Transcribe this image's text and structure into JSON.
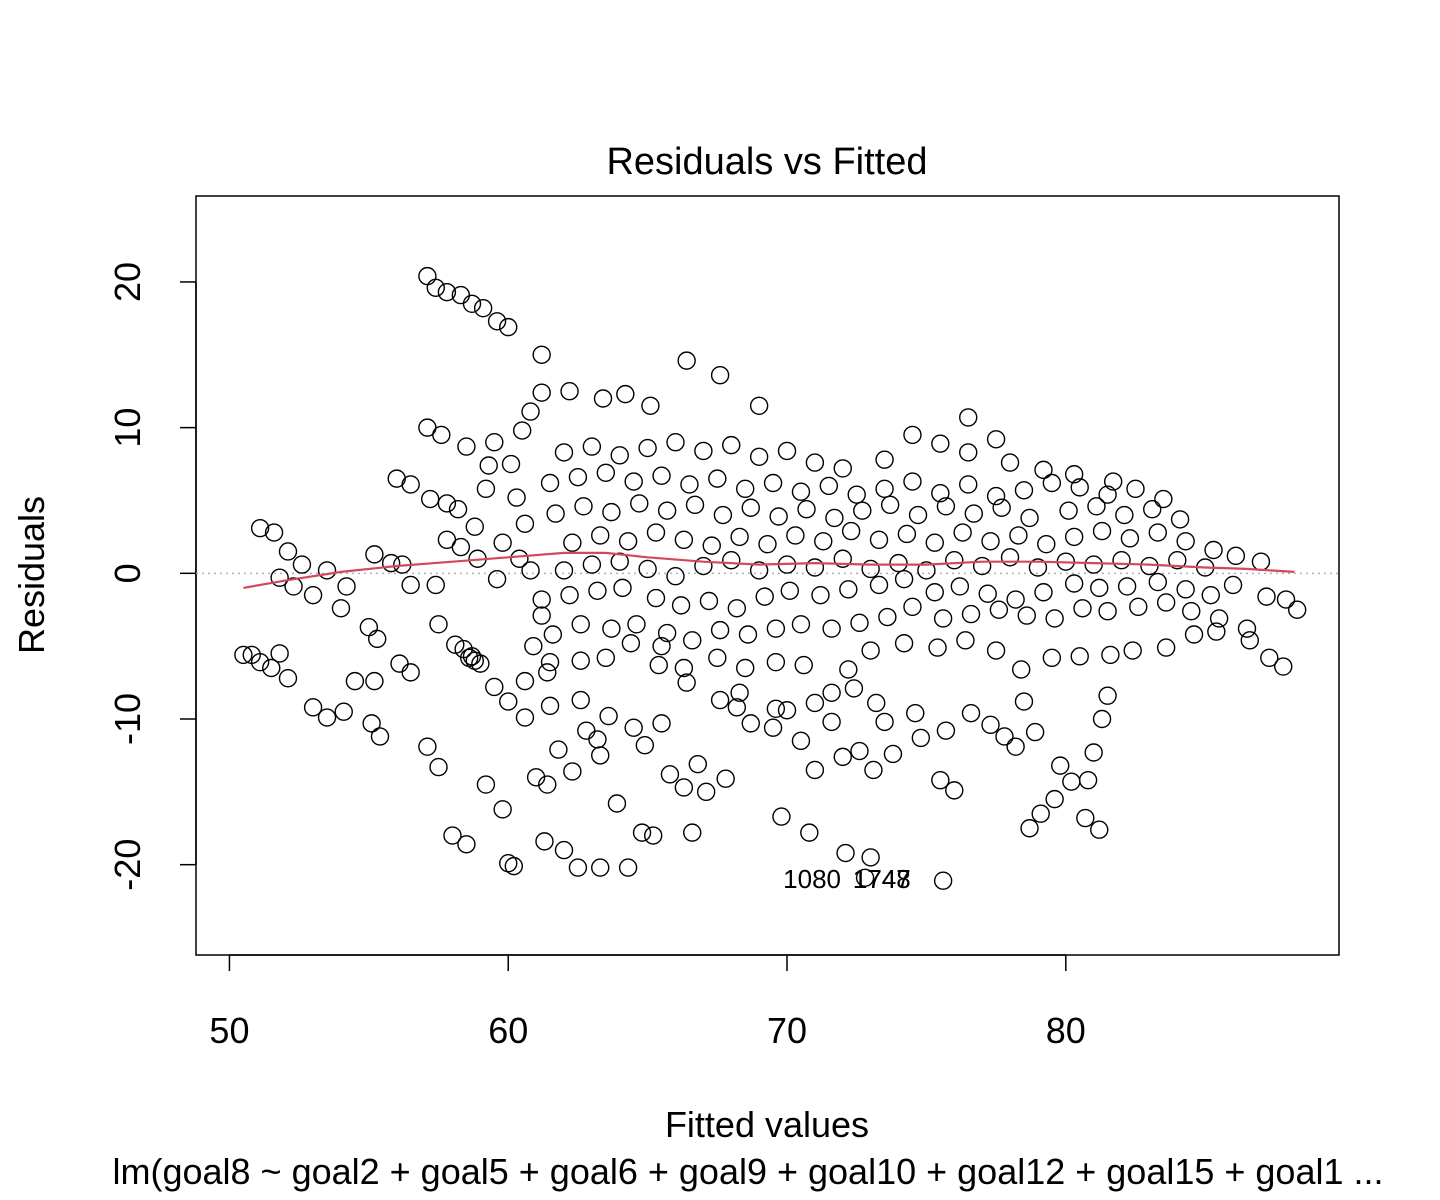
{
  "chart_data": {
    "type": "scatter",
    "title": "Residuals vs Fitted",
    "xlabel": "Fitted values",
    "ylabel": "Residuals",
    "caption": "lm(goal8 ~ goal2 + goal5 + goal6 + goal9 + goal10 + goal12 + goal15 + goal1 ...",
    "xlim": [
      48.8,
      89.8
    ],
    "ylim": [
      -26.2,
      25.9
    ],
    "xticks": [
      50,
      60,
      70,
      80
    ],
    "xtick_labels": [
      "50",
      "60",
      "70",
      "80"
    ],
    "yticks": [
      -20,
      -10,
      0,
      10,
      20
    ],
    "ytick_labels": [
      "-20",
      "-10",
      "0",
      "10",
      "20"
    ],
    "grid": false,
    "reference_line": {
      "y": 0,
      "style": "dotted",
      "color": "#b0b0b0"
    },
    "colors": {
      "points": "#000000",
      "smooth": "#d1495b",
      "reference": "#b0b0b0"
    },
    "smooth_line": {
      "x": [
        50.5,
        52.0,
        54.0,
        56.0,
        58.0,
        60.0,
        62.0,
        63.5,
        65.0,
        67.0,
        69.0,
        71.0,
        73.0,
        75.0,
        77.0,
        79.0,
        81.0,
        83.0,
        85.0,
        86.5,
        88.2
      ],
      "y": [
        -1.0,
        -0.5,
        0.1,
        0.5,
        0.8,
        1.1,
        1.4,
        1.4,
        1.1,
        0.8,
        0.6,
        0.7,
        0.6,
        0.6,
        0.8,
        0.8,
        0.7,
        0.6,
        0.4,
        0.3,
        0.1
      ]
    },
    "points": [
      [
        50.5,
        -5.6
      ],
      [
        50.8,
        -5.6
      ],
      [
        51.1,
        -6.1
      ],
      [
        51.5,
        -6.5
      ],
      [
        51.8,
        -5.5
      ],
      [
        52.1,
        -7.2
      ],
      [
        53.0,
        -9.2
      ],
      [
        53.5,
        -9.9
      ],
      [
        54.1,
        -9.5
      ],
      [
        54.5,
        -7.4
      ],
      [
        55.1,
        -10.3
      ],
      [
        55.4,
        -11.2
      ],
      [
        55.2,
        -7.4
      ],
      [
        56.1,
        -6.2
      ],
      [
        56.5,
        -6.8
      ],
      [
        57.1,
        -11.9
      ],
      [
        57.5,
        -13.3
      ],
      [
        58.0,
        -18.0
      ],
      [
        58.5,
        -18.6
      ],
      [
        59.2,
        -14.5
      ],
      [
        59.8,
        -16.2
      ],
      [
        60.0,
        -19.9
      ],
      [
        60.2,
        -20.1
      ],
      [
        61.0,
        -14.0
      ],
      [
        61.4,
        -14.5
      ],
      [
        61.3,
        -18.4
      ],
      [
        62.0,
        -19.0
      ],
      [
        62.5,
        -20.2
      ],
      [
        63.3,
        -20.2
      ],
      [
        64.3,
        -20.2
      ],
      [
        64.8,
        -17.8
      ],
      [
        65.2,
        -18.0
      ],
      [
        66.6,
        -17.8
      ],
      [
        69.8,
        -16.7
      ],
      [
        70.8,
        -17.8
      ],
      [
        72.1,
        -19.2
      ],
      [
        72.8,
        -20.9
      ],
      [
        73.0,
        -19.5
      ],
      [
        75.6,
        -21.1
      ],
      [
        78.7,
        -17.5
      ],
      [
        79.1,
        -16.5
      ],
      [
        80.2,
        -14.3
      ],
      [
        81.2,
        -17.6
      ],
      [
        57.1,
        20.4
      ],
      [
        57.4,
        19.6
      ],
      [
        57.8,
        19.3
      ],
      [
        58.3,
        19.1
      ],
      [
        58.7,
        18.5
      ],
      [
        59.1,
        18.2
      ],
      [
        59.6,
        17.3
      ],
      [
        60.0,
        16.9
      ],
      [
        61.2,
        15.0
      ],
      [
        66.4,
        14.6
      ],
      [
        67.6,
        13.6
      ],
      [
        61.2,
        12.4
      ],
      [
        62.2,
        12.5
      ],
      [
        63.4,
        12.0
      ],
      [
        64.2,
        12.3
      ],
      [
        65.1,
        11.5
      ],
      [
        69.0,
        11.5
      ],
      [
        57.1,
        10.0
      ],
      [
        57.6,
        9.5
      ],
      [
        76.5,
        10.7
      ],
      [
        51.1,
        3.1
      ],
      [
        51.6,
        2.8
      ],
      [
        52.1,
        1.5
      ],
      [
        52.6,
        0.6
      ],
      [
        53.5,
        0.2
      ],
      [
        54.2,
        -0.9
      ],
      [
        51.8,
        -0.3
      ],
      [
        52.3,
        -0.9
      ],
      [
        53.0,
        -1.5
      ],
      [
        54.0,
        -2.4
      ],
      [
        55.2,
        1.3
      ],
      [
        55.8,
        0.7
      ],
      [
        56.2,
        0.6
      ],
      [
        56.5,
        -0.8
      ],
      [
        57.4,
        -0.8
      ],
      [
        57.8,
        2.3
      ],
      [
        58.3,
        1.8
      ],
      [
        58.9,
        1.0
      ],
      [
        59.6,
        -0.4
      ],
      [
        56.0,
        6.5
      ],
      [
        56.5,
        6.1
      ],
      [
        57.2,
        5.1
      ],
      [
        57.8,
        4.8
      ],
      [
        58.5,
        8.7
      ],
      [
        59.3,
        7.4
      ],
      [
        57.5,
        -3.5
      ],
      [
        58.1,
        -4.9
      ],
      [
        58.7,
        -5.7
      ],
      [
        59.5,
        -7.8
      ],
      [
        60.0,
        -8.8
      ],
      [
        60.6,
        -9.9
      ],
      [
        61.5,
        -9.1
      ],
      [
        62.6,
        -8.7
      ],
      [
        63.6,
        -9.8
      ],
      [
        64.5,
        -10.6
      ],
      [
        65.5,
        -10.3
      ],
      [
        61.8,
        -12.1
      ],
      [
        62.3,
        -13.6
      ],
      [
        63.3,
        -12.5
      ],
      [
        63.9,
        -15.8
      ],
      [
        64.9,
        -11.8
      ],
      [
        65.8,
        -13.8
      ],
      [
        66.3,
        -14.7
      ],
      [
        67.1,
        -15.0
      ],
      [
        67.8,
        -14.1
      ],
      [
        68.7,
        -10.3
      ],
      [
        68.3,
        -8.2
      ],
      [
        69.5,
        -10.6
      ],
      [
        70.0,
        -9.4
      ],
      [
        70.5,
        -11.5
      ],
      [
        71.0,
        -13.5
      ],
      [
        71.6,
        -10.2
      ],
      [
        72.0,
        -12.6
      ],
      [
        72.6,
        -12.2
      ],
      [
        73.1,
        -13.5
      ],
      [
        73.5,
        -10.2
      ],
      [
        74.6,
        -9.6
      ],
      [
        75.5,
        -14.2
      ],
      [
        76.0,
        -14.9
      ],
      [
        75.7,
        -10.8
      ],
      [
        76.6,
        -9.6
      ],
      [
        77.3,
        -10.4
      ],
      [
        77.8,
        -11.2
      ],
      [
        78.2,
        -11.9
      ],
      [
        78.5,
        -8.8
      ],
      [
        79.8,
        -13.2
      ],
      [
        80.8,
        -14.2
      ],
      [
        81.3,
        -10.0
      ],
      [
        81.5,
        -8.4
      ],
      [
        81.0,
        -12.3
      ],
      [
        79.6,
        -15.5
      ],
      [
        65.4,
        -6.3
      ],
      [
        66.4,
        -7.5
      ],
      [
        67.6,
        -8.7
      ],
      [
        68.2,
        -9.2
      ],
      [
        69.6,
        -9.3
      ],
      [
        71.0,
        -8.9
      ],
      [
        71.6,
        -8.2
      ],
      [
        72.4,
        -7.9
      ],
      [
        73.2,
        -8.9
      ],
      [
        60.6,
        -7.4
      ],
      [
        61.4,
        -6.8
      ],
      [
        62.6,
        -6.0
      ],
      [
        63.5,
        -5.8
      ],
      [
        64.4,
        -4.8
      ],
      [
        65.5,
        -5.0
      ],
      [
        66.3,
        -6.5
      ],
      [
        67.5,
        -5.8
      ],
      [
        68.5,
        -6.5
      ],
      [
        69.6,
        -6.1
      ],
      [
        70.6,
        -6.3
      ],
      [
        72.2,
        -6.6
      ],
      [
        73.0,
        -5.3
      ],
      [
        74.2,
        -4.8
      ],
      [
        75.4,
        -5.1
      ],
      [
        76.4,
        -4.6
      ],
      [
        77.5,
        -5.3
      ],
      [
        78.4,
        -6.6
      ],
      [
        79.5,
        -5.8
      ],
      [
        80.5,
        -5.7
      ],
      [
        81.6,
        -5.6
      ],
      [
        82.4,
        -5.3
      ],
      [
        83.6,
        -5.1
      ],
      [
        84.6,
        -4.2
      ],
      [
        85.4,
        -4.0
      ],
      [
        86.6,
        -4.6
      ],
      [
        87.3,
        -5.8
      ],
      [
        87.8,
        -6.4
      ],
      [
        61.6,
        -4.2
      ],
      [
        62.6,
        -3.5
      ],
      [
        63.7,
        -3.8
      ],
      [
        64.6,
        -3.5
      ],
      [
        65.7,
        -4.1
      ],
      [
        66.6,
        -4.6
      ],
      [
        67.6,
        -3.9
      ],
      [
        68.6,
        -4.2
      ],
      [
        69.6,
        -3.8
      ],
      [
        70.5,
        -3.5
      ],
      [
        71.6,
        -3.8
      ],
      [
        72.6,
        -3.4
      ],
      [
        73.6,
        -3.0
      ],
      [
        74.5,
        -2.3
      ],
      [
        75.6,
        -3.1
      ],
      [
        76.6,
        -2.8
      ],
      [
        77.6,
        -2.5
      ],
      [
        78.6,
        -2.9
      ],
      [
        79.6,
        -3.1
      ],
      [
        80.6,
        -2.4
      ],
      [
        81.5,
        -2.6
      ],
      [
        82.6,
        -2.3
      ],
      [
        83.6,
        -2.0
      ],
      [
        84.5,
        -2.6
      ],
      [
        85.5,
        -3.1
      ],
      [
        86.5,
        -3.8
      ],
      [
        61.2,
        -1.8
      ],
      [
        62.2,
        -1.5
      ],
      [
        63.2,
        -1.2
      ],
      [
        64.1,
        -1.0
      ],
      [
        65.3,
        -1.7
      ],
      [
        66.2,
        -2.2
      ],
      [
        67.2,
        -1.9
      ],
      [
        68.2,
        -2.4
      ],
      [
        69.2,
        -1.6
      ],
      [
        70.1,
        -1.2
      ],
      [
        71.2,
        -1.5
      ],
      [
        72.2,
        -1.1
      ],
      [
        73.3,
        -0.8
      ],
      [
        74.2,
        -0.4
      ],
      [
        75.3,
        -1.3
      ],
      [
        76.2,
        -0.9
      ],
      [
        77.2,
        -1.4
      ],
      [
        78.2,
        -1.8
      ],
      [
        79.2,
        -1.3
      ],
      [
        80.3,
        -0.7
      ],
      [
        81.2,
        -1.0
      ],
      [
        82.2,
        -0.9
      ],
      [
        83.3,
        -0.6
      ],
      [
        84.3,
        -1.1
      ],
      [
        85.2,
        -1.5
      ],
      [
        86.0,
        -0.8
      ],
      [
        87.2,
        -1.6
      ],
      [
        87.9,
        -1.8
      ],
      [
        88.3,
        -2.5
      ],
      [
        62.0,
        0.2
      ],
      [
        63.0,
        0.6
      ],
      [
        64.0,
        0.8
      ],
      [
        65.0,
        0.3
      ],
      [
        66.0,
        -0.2
      ],
      [
        67.0,
        0.5
      ],
      [
        68.0,
        0.9
      ],
      [
        69.0,
        0.2
      ],
      [
        70.0,
        0.6
      ],
      [
        71.0,
        0.4
      ],
      [
        72.0,
        1.0
      ],
      [
        73.0,
        0.3
      ],
      [
        74.0,
        0.7
      ],
      [
        75.0,
        0.2
      ],
      [
        76.0,
        0.9
      ],
      [
        77.0,
        0.5
      ],
      [
        78.0,
        1.1
      ],
      [
        79.0,
        0.4
      ],
      [
        80.0,
        0.8
      ],
      [
        81.0,
        0.6
      ],
      [
        82.0,
        0.9
      ],
      [
        83.0,
        0.5
      ],
      [
        84.0,
        0.9
      ],
      [
        85.0,
        0.4
      ],
      [
        86.1,
        1.2
      ],
      [
        87.0,
        0.8
      ],
      [
        62.3,
        2.1
      ],
      [
        63.3,
        2.6
      ],
      [
        64.3,
        2.2
      ],
      [
        65.3,
        2.8
      ],
      [
        66.3,
        2.3
      ],
      [
        67.3,
        1.9
      ],
      [
        68.3,
        2.5
      ],
      [
        69.3,
        2.0
      ],
      [
        70.3,
        2.6
      ],
      [
        71.3,
        2.2
      ],
      [
        72.3,
        2.9
      ],
      [
        73.3,
        2.3
      ],
      [
        74.3,
        2.7
      ],
      [
        75.3,
        2.1
      ],
      [
        76.3,
        2.8
      ],
      [
        77.3,
        2.2
      ],
      [
        78.3,
        2.6
      ],
      [
        79.3,
        2.0
      ],
      [
        80.3,
        2.5
      ],
      [
        81.3,
        2.9
      ],
      [
        82.3,
        2.4
      ],
      [
        83.3,
        2.8
      ],
      [
        84.3,
        2.2
      ],
      [
        85.3,
        1.6
      ],
      [
        61.7,
        4.1
      ],
      [
        62.7,
        4.6
      ],
      [
        63.7,
        4.2
      ],
      [
        64.7,
        4.8
      ],
      [
        65.7,
        4.3
      ],
      [
        66.7,
        4.7
      ],
      [
        67.7,
        4.0
      ],
      [
        68.7,
        4.5
      ],
      [
        69.7,
        3.9
      ],
      [
        70.7,
        4.4
      ],
      [
        71.7,
        3.8
      ],
      [
        72.7,
        4.3
      ],
      [
        73.7,
        4.7
      ],
      [
        74.7,
        4.0
      ],
      [
        75.7,
        4.6
      ],
      [
        76.7,
        4.1
      ],
      [
        77.7,
        4.5
      ],
      [
        78.7,
        3.8
      ],
      [
        80.1,
        4.3
      ],
      [
        81.1,
        4.6
      ],
      [
        82.1,
        4.0
      ],
      [
        83.1,
        4.4
      ],
      [
        84.1,
        3.7
      ],
      [
        61.5,
        6.2
      ],
      [
        62.5,
        6.6
      ],
      [
        63.5,
        6.9
      ],
      [
        64.5,
        6.3
      ],
      [
        65.5,
        6.7
      ],
      [
        66.5,
        6.1
      ],
      [
        67.5,
        6.5
      ],
      [
        68.5,
        5.8
      ],
      [
        69.5,
        6.2
      ],
      [
        70.5,
        5.6
      ],
      [
        71.5,
        6.0
      ],
      [
        72.5,
        5.4
      ],
      [
        73.5,
        5.8
      ],
      [
        74.5,
        6.3
      ],
      [
        75.5,
        5.5
      ],
      [
        76.5,
        6.1
      ],
      [
        77.5,
        5.3
      ],
      [
        78.5,
        5.7
      ],
      [
        79.5,
        6.2
      ],
      [
        80.5,
        5.9
      ],
      [
        81.5,
        5.4
      ],
      [
        82.5,
        5.8
      ],
      [
        83.5,
        5.1
      ],
      [
        62.0,
        8.3
      ],
      [
        63.0,
        8.7
      ],
      [
        64.0,
        8.1
      ],
      [
        65.0,
        8.6
      ],
      [
        66.0,
        9.0
      ],
      [
        67.0,
        8.4
      ],
      [
        68.0,
        8.8
      ],
      [
        69.0,
        8.0
      ],
      [
        70.0,
        8.4
      ],
      [
        71.0,
        7.6
      ],
      [
        72.0,
        7.2
      ],
      [
        73.5,
        7.8
      ],
      [
        74.5,
        9.5
      ],
      [
        75.5,
        8.9
      ],
      [
        76.5,
        8.3
      ],
      [
        77.5,
        9.2
      ],
      [
        78.0,
        7.6
      ],
      [
        79.2,
        7.1
      ],
      [
        80.3,
        6.8
      ],
      [
        81.7,
        6.3
      ],
      [
        60.8,
        11.1
      ],
      [
        60.5,
        9.8
      ],
      [
        59.5,
        9.0
      ],
      [
        60.1,
        7.5
      ],
      [
        60.3,
        5.2
      ],
      [
        60.6,
        3.4
      ],
      [
        59.8,
        2.1
      ],
      [
        60.4,
        1.0
      ],
      [
        58.2,
        4.4
      ],
      [
        58.8,
        3.2
      ],
      [
        59.2,
        5.8
      ],
      [
        60.8,
        0.2
      ],
      [
        61.2,
        -2.9
      ],
      [
        60.9,
        -5.0
      ],
      [
        61.5,
        -6.1
      ],
      [
        73.8,
        -12.4
      ],
      [
        74.8,
        -11.3
      ],
      [
        78.9,
        -10.9
      ],
      [
        80.7,
        -16.8
      ],
      [
        58.4,
        -5.2
      ],
      [
        58.6,
        -5.8
      ],
      [
        58.8,
        -6.0
      ],
      [
        59.0,
        -6.2
      ],
      [
        55.0,
        -3.7
      ],
      [
        55.3,
        -4.5
      ],
      [
        62.8,
        -10.8
      ],
      [
        63.2,
        -11.4
      ],
      [
        66.8,
        -13.1
      ]
    ],
    "point_labels": [
      {
        "text": "1080",
        "x": 70.9,
        "y": -21.6
      },
      {
        "text": "1747",
        "x": 73.4,
        "y": -21.6
      },
      {
        "text": "1748",
        "x": 73.4,
        "y": -21.6
      }
    ]
  }
}
